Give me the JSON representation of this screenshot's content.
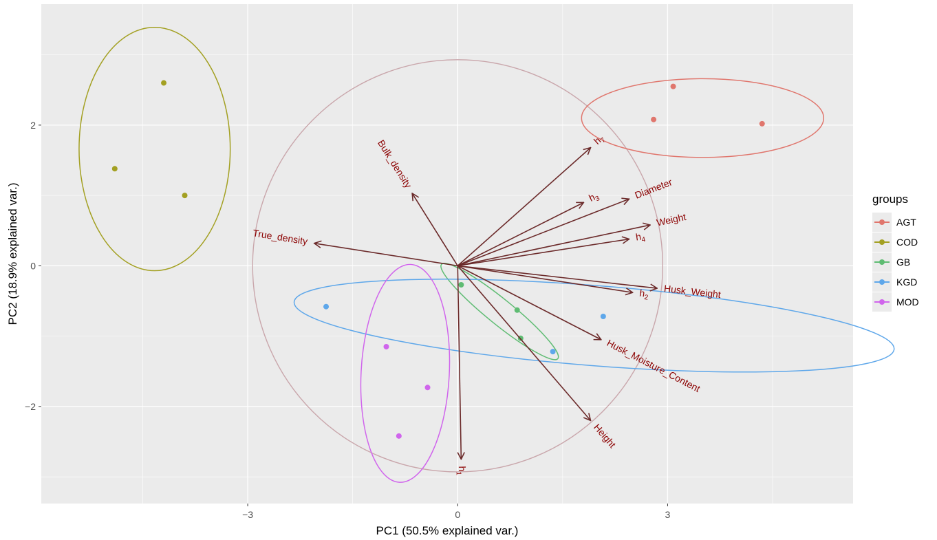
{
  "chart_data": {
    "type": "scatter",
    "subtype": "pca-biplot",
    "xlabel": "PC1 (50.5% explained var.)",
    "ylabel": "PC2 (18.9% explained var.)",
    "xlim": [
      -5.95,
      5.65
    ],
    "ylim": [
      -3.38,
      3.72
    ],
    "x_ticks": [
      -3,
      0,
      3
    ],
    "y_ticks": [
      -2,
      0,
      2
    ],
    "grid": true,
    "legend": {
      "title": "groups",
      "position": "right"
    },
    "groups": [
      {
        "name": "AGT",
        "color": "#e0766d",
        "points": [
          [
            2.8,
            2.08
          ],
          [
            3.08,
            2.55
          ],
          [
            4.35,
            2.02
          ]
        ],
        "ellipse": {
          "cx": 3.5,
          "cy": 2.1,
          "rx": 1.73,
          "ry": 0.56,
          "angle": 0
        }
      },
      {
        "name": "COD",
        "color": "#a3a022",
        "points": [
          [
            -4.9,
            1.38
          ],
          [
            -4.2,
            2.6
          ],
          [
            -3.9,
            1.0
          ]
        ],
        "ellipse": {
          "cx": -4.33,
          "cy": 1.66,
          "rx": 1.08,
          "ry": 1.73,
          "angle": 0
        }
      },
      {
        "name": "GB",
        "color": "#5fbc73",
        "points": [
          [
            0.05,
            -0.27
          ],
          [
            0.85,
            -0.63
          ],
          [
            0.9,
            -1.03
          ]
        ],
        "ellipse": {
          "cx": 0.6,
          "cy": -0.65,
          "rx": 1.07,
          "ry": 0.18,
          "angle": -39
        }
      },
      {
        "name": "KGD",
        "color": "#5ea7ea",
        "points": [
          [
            -1.88,
            -0.58
          ],
          [
            2.08,
            -0.72
          ],
          [
            1.36,
            -1.22
          ]
        ],
        "ellipse": {
          "cx": 1.95,
          "cy": -0.85,
          "rx": 4.3,
          "ry": 0.57,
          "angle": -4.5
        }
      },
      {
        "name": "MOD",
        "color": "#d065ec",
        "points": [
          [
            -1.02,
            -1.15
          ],
          [
            -0.43,
            -1.73
          ],
          [
            -0.84,
            -2.42
          ]
        ],
        "ellipse": {
          "cx": -0.75,
          "cy": -1.53,
          "rx": 0.63,
          "ry": 1.55,
          "angle": -3
        }
      }
    ],
    "correlation_circle": {
      "cx": 0,
      "cy": 0,
      "r": 2.93,
      "color": "#c9a6ab"
    },
    "loadings": [
      {
        "name": "h7",
        "label_main": "h",
        "label_sub": "7",
        "x": 1.9,
        "y": 1.68
      },
      {
        "name": "Bulk_density",
        "label_main": "Bulk_density",
        "label_sub": "",
        "x": -0.65,
        "y": 1.03
      },
      {
        "name": "h3",
        "label_main": "h",
        "label_sub": "3",
        "x": 1.8,
        "y": 0.9
      },
      {
        "name": "Diameter",
        "label_main": "Diameter",
        "label_sub": "",
        "x": 2.45,
        "y": 0.95
      },
      {
        "name": "Weight",
        "label_main": "Weight",
        "label_sub": "",
        "x": 2.75,
        "y": 0.58
      },
      {
        "name": "h4",
        "label_main": "h",
        "label_sub": "4",
        "x": 2.45,
        "y": 0.38
      },
      {
        "name": "True_density",
        "label_main": "True_density",
        "label_sub": "",
        "x": -2.05,
        "y": 0.32
      },
      {
        "name": "Husk_Weight",
        "label_main": "Husk_Weight",
        "label_sub": "",
        "x": 2.85,
        "y": -0.32
      },
      {
        "name": "h2",
        "label_main": "h",
        "label_sub": "2",
        "x": 2.5,
        "y": -0.38
      },
      {
        "name": "Husk_Moisture_Content",
        "label_main": "Husk_Moisture_Content",
        "label_sub": "",
        "x": 2.05,
        "y": -1.05
      },
      {
        "name": "Height",
        "label_main": "Height",
        "label_sub": "",
        "x": 1.9,
        "y": -2.2
      },
      {
        "name": "h1",
        "label_main": "h",
        "label_sub": "1",
        "x": 0.05,
        "y": -2.75
      }
    ],
    "loading_color": "#6b2a2a",
    "loading_label_color": "#8b0000"
  }
}
